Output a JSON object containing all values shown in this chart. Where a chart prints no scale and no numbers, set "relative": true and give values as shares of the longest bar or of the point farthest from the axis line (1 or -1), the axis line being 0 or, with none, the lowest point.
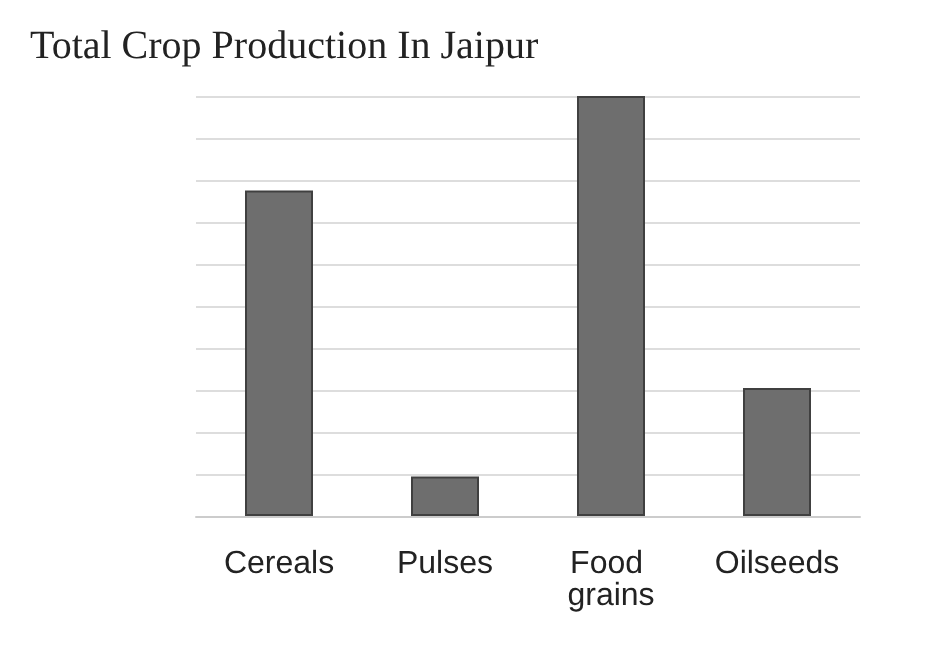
{
  "chart_data": {
    "type": "bar",
    "title": "Total Crop Production In Jaipur",
    "relative": true,
    "categories": [
      "Cereals",
      "Pulses",
      "Food grains",
      "Oilseeds"
    ],
    "values": [
      0.775,
      0.094,
      1,
      0.305
    ],
    "color": "#6e6e6e",
    "grid": "y"
  }
}
